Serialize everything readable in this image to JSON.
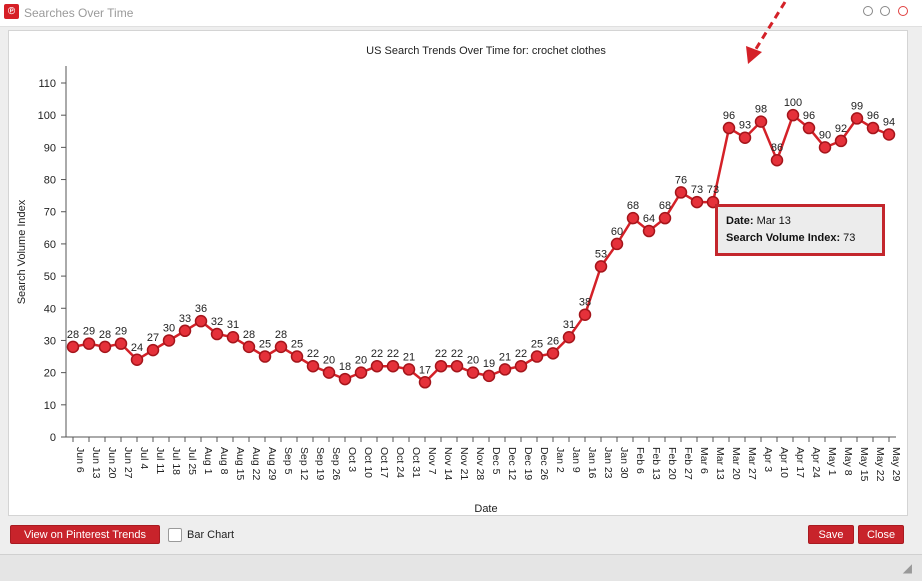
{
  "window": {
    "title": "Searches Over Time",
    "icon": "pinterest-logo-icon"
  },
  "tooltip": {
    "date_label": "Date:",
    "date_value": "Mar 13",
    "index_label": "Search Volume Index:",
    "index_value": "73"
  },
  "footer": {
    "view_trends_label": "View on Pinterest Trends",
    "bar_chart_label": "Bar Chart",
    "bar_chart_checked": false,
    "save_label": "Save",
    "close_label": "Close"
  },
  "colors": {
    "accent": "#d61f26",
    "line": "#d42128",
    "point_fill": "#e5313a",
    "point_stroke": "#a4151b"
  },
  "chart_data": {
    "type": "line",
    "title": "US Search Trends Over Time for: crochet clothes",
    "xlabel": "Date",
    "ylabel": "Search Volume Index",
    "ylim": [
      0,
      110
    ],
    "yticks": [
      0,
      10,
      20,
      30,
      40,
      50,
      60,
      70,
      80,
      90,
      100,
      110
    ],
    "grid": false,
    "categories": [
      "Jun 6",
      "Jun 13",
      "Jun 20",
      "Jun 27",
      "Jul 4",
      "Jul 11",
      "Jul 18",
      "Jul 25",
      "Aug 1",
      "Aug 8",
      "Aug 15",
      "Aug 22",
      "Aug 29",
      "Sep 5",
      "Sep 12",
      "Sep 19",
      "Sep 26",
      "Oct 3",
      "Oct 10",
      "Oct 17",
      "Oct 24",
      "Oct 31",
      "Nov 7",
      "Nov 14",
      "Nov 21",
      "Nov 28",
      "Dec 5",
      "Dec 12",
      "Dec 19",
      "Dec 26",
      "Jan 2",
      "Jan 9",
      "Jan 16",
      "Jan 23",
      "Jan 30",
      "Feb 6",
      "Feb 13",
      "Feb 20",
      "Feb 27",
      "Mar 6",
      "Mar 13",
      "Mar 20",
      "Mar 27",
      "Apr 3",
      "Apr 10",
      "Apr 17",
      "Apr 24",
      "May 1",
      "May 8",
      "May 15",
      "May 22",
      "May 29"
    ],
    "values": [
      28,
      29,
      28,
      29,
      24,
      27,
      30,
      33,
      36,
      32,
      31,
      28,
      25,
      28,
      25,
      22,
      20,
      18,
      20,
      22,
      22,
      21,
      17,
      22,
      22,
      20,
      19,
      21,
      22,
      25,
      26,
      31,
      38,
      53,
      60,
      68,
      64,
      68,
      76,
      73,
      73,
      96,
      93,
      98,
      86,
      100,
      96,
      90,
      92,
      99,
      96,
      94
    ]
  }
}
